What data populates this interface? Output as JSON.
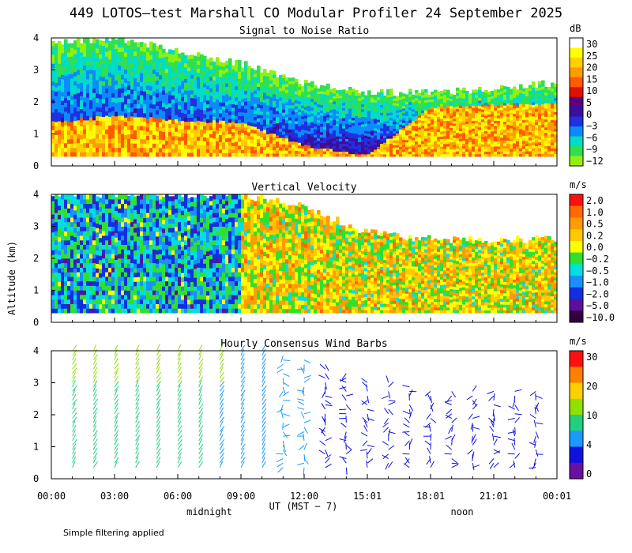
{
  "figure": {
    "title": "449 LOTOS—test Marshall CO Modular Profiler 24 September 2025",
    "ylabel": "Altitude (km)",
    "xlabel": "UT  (MST − 7)",
    "xtick_labels": [
      "00:00",
      "03:00",
      "06:00",
      "09:00",
      "12:00",
      "15:01",
      "18:01",
      "21:01",
      "00:01"
    ],
    "x_range_hours": [
      0,
      24
    ],
    "day_labels": [
      {
        "text": "midnight",
        "hour": 7.5
      },
      {
        "text": "noon",
        "hour": 19.5
      }
    ],
    "footer": "Simple filtering applied"
  },
  "chart_data": [
    {
      "type": "heatmap",
      "title": "Signal to Noise Ratio",
      "ylim": [
        0,
        4
      ],
      "ytick_labels": [
        "0",
        "1",
        "2",
        "3",
        "4"
      ],
      "colorbar": {
        "unit": "dB",
        "labels": [
          "30",
          "25",
          "20",
          "15",
          "10",
          "5",
          "0",
          "−3",
          "−6",
          "−9",
          "−12"
        ],
        "colors": [
          "#ffffff",
          "#ffff00",
          "#ffd000",
          "#ff9a00",
          "#ff5a00",
          "#e01000",
          "#5a0080",
          "#3a10a0",
          "#2030e0",
          "#0a8cff",
          "#00dcc8",
          "#30e050",
          "#90f010"
        ]
      },
      "profile": [
        {
          "h": 0,
          "top": 3.9,
          "red": 1.3
        },
        {
          "h": 3,
          "top": 4.0,
          "red": 1.5
        },
        {
          "h": 6,
          "top": 3.6,
          "red": 1.4
        },
        {
          "h": 9,
          "top": 3.2,
          "red": 1.3
        },
        {
          "h": 12,
          "top": 2.6,
          "red": 0.6
        },
        {
          "h": 15,
          "top": 2.3,
          "red": 0.3
        },
        {
          "h": 18,
          "top": 2.3,
          "red": 1.8
        },
        {
          "h": 21,
          "top": 2.4,
          "red": 1.9
        },
        {
          "h": 24,
          "top": 2.6,
          "red": 1.9
        }
      ]
    },
    {
      "type": "heatmap",
      "title": "Vertical Velocity",
      "ylim": [
        0,
        4
      ],
      "ytick_labels": [
        "0",
        "1",
        "2",
        "3",
        "4"
      ],
      "colorbar": {
        "unit": "m/s",
        "labels": [
          "2.0",
          "1.0",
          "0.5",
          "0.2",
          "0.0",
          "−0.2",
          "−0.5",
          "−1.0",
          "−2.0",
          "−5.0",
          "−10.0"
        ],
        "colors": [
          "#ff1010",
          "#ff6a00",
          "#ff9c00",
          "#ffc800",
          "#ffff00",
          "#30e030",
          "#00e0e0",
          "#1a90ff",
          "#1030e0",
          "#5a109a",
          "#300040"
        ]
      },
      "profile": [
        {
          "h": 0,
          "top": 4.0
        },
        {
          "h": 3,
          "top": 4.0
        },
        {
          "h": 6,
          "top": 4.0
        },
        {
          "h": 9,
          "top": 4.0
        },
        {
          "h": 12,
          "top": 3.6
        },
        {
          "h": 15,
          "top": 2.8
        },
        {
          "h": 18,
          "top": 2.6
        },
        {
          "h": 21,
          "top": 2.6
        },
        {
          "h": 24,
          "top": 2.6
        }
      ]
    },
    {
      "type": "wind_barbs",
      "title": "Hourly Consensus Wind Barbs",
      "ylim": [
        0,
        4
      ],
      "ytick_labels": [
        "0",
        "1",
        "2",
        "3",
        "4"
      ],
      "colorbar": {
        "unit": "m/s",
        "labels": [
          "30",
          "20",
          "10",
          "4",
          "0"
        ],
        "colors": [
          "#ff1010",
          "#ff8000",
          "#ffd000",
          "#90e000",
          "#20d080",
          "#1a9aff",
          "#1010e0",
          "#6a10a0"
        ]
      },
      "columns": [
        {
          "hour": 1.0,
          "top": 4.0,
          "speed": 10
        },
        {
          "hour": 2.0,
          "top": 4.0,
          "speed": 9
        },
        {
          "hour": 3.0,
          "top": 4.0,
          "speed": 9
        },
        {
          "hour": 4.0,
          "top": 4.0,
          "speed": 9
        },
        {
          "hour": 5.0,
          "top": 4.0,
          "speed": 9
        },
        {
          "hour": 6.0,
          "top": 4.0,
          "speed": 8
        },
        {
          "hour": 7.0,
          "top": 4.0,
          "speed": 8
        },
        {
          "hour": 8.0,
          "top": 4.0,
          "speed": 7
        },
        {
          "hour": 9.0,
          "top": 4.0,
          "speed": 6
        },
        {
          "hour": 10.0,
          "top": 4.0,
          "speed": 6
        },
        {
          "hour": 11.0,
          "top": 3.9,
          "speed": 5
        },
        {
          "hour": 12.0,
          "top": 3.8,
          "speed": 4
        },
        {
          "hour": 13.0,
          "top": 3.7,
          "speed": 3
        },
        {
          "hour": 14.0,
          "top": 3.4,
          "speed": 3
        },
        {
          "hour": 15.0,
          "top": 3.1,
          "speed": 2
        },
        {
          "hour": 16.0,
          "top": 3.1,
          "speed": 2
        },
        {
          "hour": 17.0,
          "top": 2.9,
          "speed": 2
        },
        {
          "hour": 18.0,
          "top": 2.8,
          "speed": 2
        },
        {
          "hour": 19.0,
          "top": 2.8,
          "speed": 2
        },
        {
          "hour": 20.0,
          "top": 2.8,
          "speed": 2
        },
        {
          "hour": 21.0,
          "top": 2.8,
          "speed": 2
        },
        {
          "hour": 22.0,
          "top": 2.8,
          "speed": 2
        },
        {
          "hour": 23.0,
          "top": 2.8,
          "speed": 2
        }
      ]
    }
  ]
}
